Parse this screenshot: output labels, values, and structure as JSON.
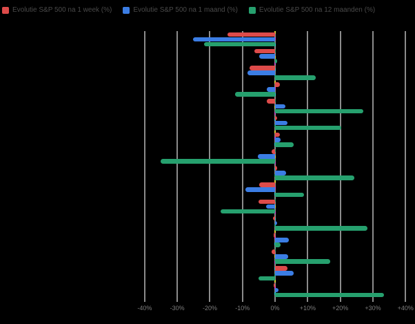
{
  "background_color": "#000000",
  "chart_data": {
    "type": "bar",
    "orientation": "horizontal",
    "title": "",
    "xlabel": "",
    "ylabel": "",
    "categories": [
      "",
      "",
      "",
      "",
      "",
      "",
      "",
      "",
      "",
      "",
      "",
      "",
      "",
      "",
      "",
      ""
    ],
    "series": [
      {
        "key": "1week",
        "name": "Evolutie S&P 500 na 1 week (%)",
        "color": "#dd4b4a",
        "values": [
          -14.6,
          -6.3,
          -7.8,
          1.5,
          -2.5,
          0.5,
          1.5,
          -1.1,
          0.5,
          -4.9,
          -5.0,
          -0.6,
          -0.5,
          -1.1,
          3.7,
          -0.4
        ]
      },
      {
        "key": "1maand",
        "name": "Evolutie S&P 500 na 1 maand (%)",
        "color": "#3b7de4",
        "values": [
          -25.2,
          -4.9,
          -8.4,
          -2.5,
          3.2,
          3.7,
          1.6,
          -5.3,
          3.4,
          -9.1,
          -2.7,
          0.7,
          4.3,
          4.1,
          5.6,
          1.1
        ]
      },
      {
        "key": "12maanden",
        "name": "Evolutie S&P 500 na 12 maanden (%)",
        "color": "#26a06e",
        "values": [
          -21.8,
          0.5,
          12.5,
          -12.3,
          27.0,
          20.3,
          5.7,
          -35.2,
          24.2,
          8.8,
          -16.7,
          28.3,
          1.6,
          16.8,
          -5.1,
          33.3
        ]
      }
    ],
    "x_ticks": [
      "-40%",
      "-30%",
      "-20%",
      "-10%",
      "0%",
      "+10%",
      "+20%",
      "+30%",
      "+40%"
    ],
    "x_tick_values": [
      -40,
      -30,
      -20,
      -10,
      0,
      10,
      20,
      30,
      40
    ],
    "xlim": [
      -44.2,
      42.9
    ],
    "grid": true,
    "legend_position": "top-left",
    "gridline_color": "#8c8c8c",
    "axis_text_color": "#7d7d7d",
    "legend_text_color": "#4a4a4a",
    "zero_line_dash_colors": [
      "#d9d03a",
      "#d344c8",
      "#3bc8d9",
      "#2aa06e"
    ]
  }
}
